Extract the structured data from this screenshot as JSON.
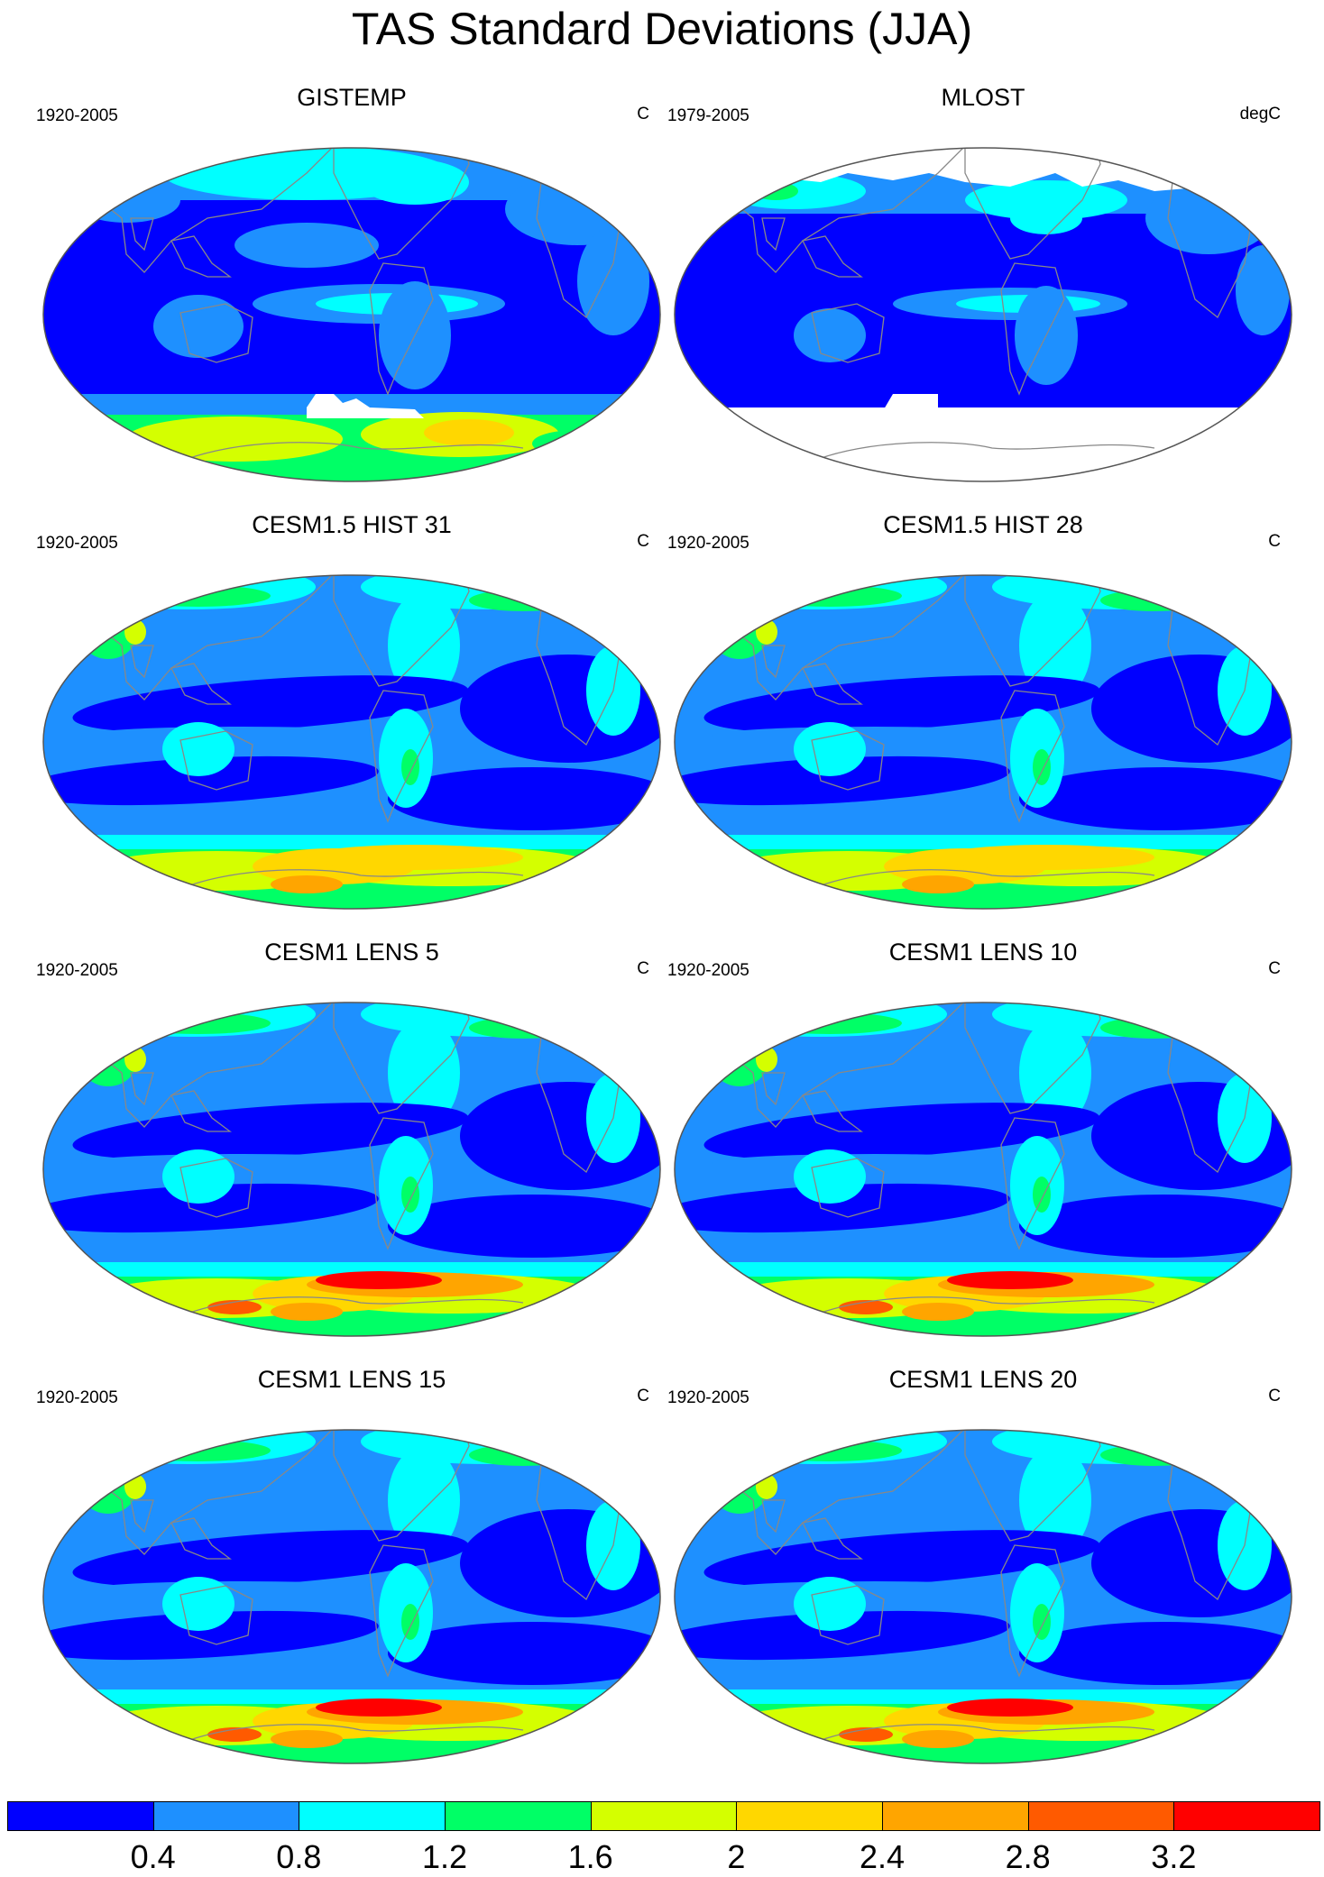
{
  "title": "TAS Standard Deviations (JJA)",
  "colors": {
    "levels": [
      "#0000ff",
      "#1e90ff",
      "#00ffff",
      "#00ff66",
      "#d4ff00",
      "#ffd700",
      "#ffa500",
      "#ff5a00",
      "#ff0000"
    ],
    "land_outline": "#888888",
    "missing": "#ffffff",
    "frame": "#555555"
  },
  "colorbar": {
    "labels": [
      "0.4",
      "0.8",
      "1.2",
      "1.6",
      "2",
      "2.4",
      "2.8",
      "3.2"
    ]
  },
  "panels": [
    {
      "title": "GISTEMP",
      "period": "1920-2005",
      "units": "C",
      "variant": "obs"
    },
    {
      "title": "MLOST",
      "period": "1979-2005",
      "units": "degC",
      "variant": "obs2"
    },
    {
      "title": "CESM1.5 HIST 31",
      "period": "1920-2005",
      "units": "C",
      "variant": "model",
      "antarctic_peak": 2
    },
    {
      "title": "CESM1.5 HIST 28",
      "period": "1920-2005",
      "units": "C",
      "variant": "model",
      "antarctic_peak": 2
    },
    {
      "title": "CESM1 LENS 5",
      "period": "1920-2005",
      "units": "C",
      "variant": "model",
      "antarctic_peak": 3
    },
    {
      "title": "CESM1 LENS 10",
      "period": "1920-2005",
      "units": "C",
      "variant": "model",
      "antarctic_peak": 3
    },
    {
      "title": "CESM1 LENS 15",
      "period": "1920-2005",
      "units": "C",
      "variant": "model",
      "antarctic_peak": 3
    },
    {
      "title": "CESM1 LENS 20",
      "period": "1920-2005",
      "units": "C",
      "variant": "model",
      "antarctic_peak": 3
    }
  ]
}
